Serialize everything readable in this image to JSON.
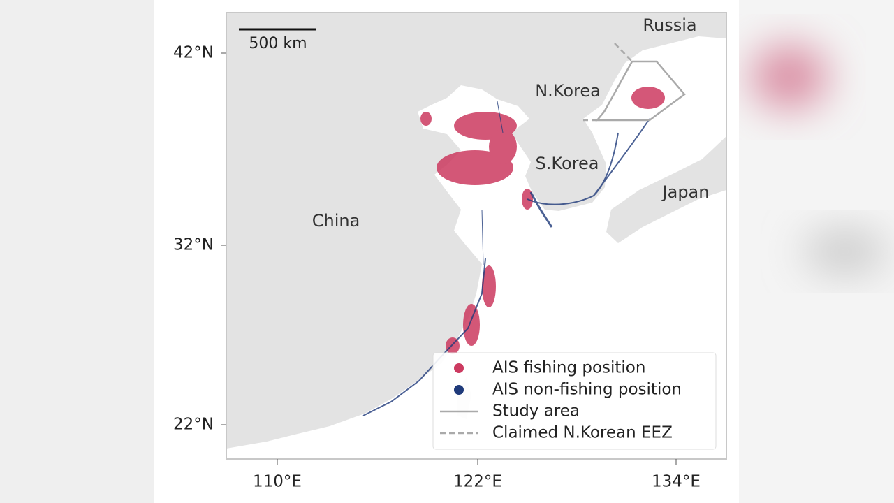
{
  "map": {
    "scale_bar": "500 km",
    "regions": [
      "Russia",
      "N.Korea",
      "S.Korea",
      "Japan",
      "China"
    ],
    "lat_ticks": [
      "42°N",
      "32°N",
      "22°N"
    ],
    "lon_ticks": [
      "110°E",
      "122°E",
      "134°E"
    ],
    "legend": [
      "AIS fishing position",
      "AIS non-fishing position",
      "Study area",
      "Claimed N.Korean EEZ"
    ]
  }
}
